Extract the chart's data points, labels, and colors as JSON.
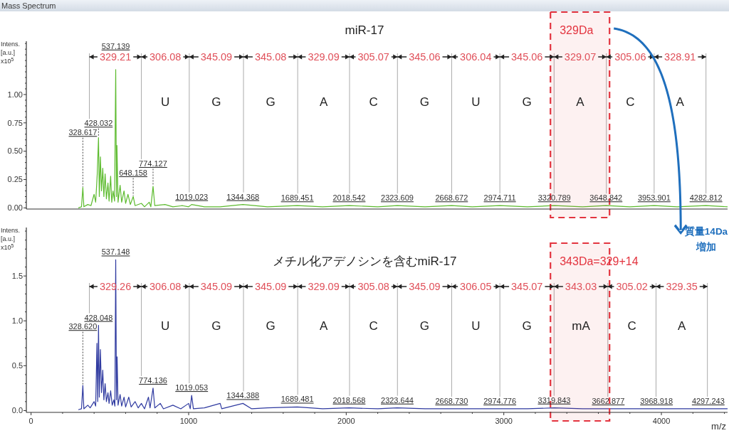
{
  "chart_data": [
    {
      "type": "line",
      "title": "miR-17",
      "ylabel": "Intens. [a.u.] x10$^{5}$",
      "color": "#5dbb2f",
      "annotations": [
        "Mass Spectrum",
        "329.21",
        "306.08",
        "345.09",
        "345.08",
        "329.09",
        "305.07",
        "345.06",
        "306.04",
        "345.06",
        "329.07",
        "305.06",
        "328.91",
        "U",
        "G",
        "G",
        "A",
        "C",
        "G",
        "U",
        "G",
        "A",
        "C",
        "A",
        {
          "text": "328.617",
          "x": 328.617,
          "y": 0.18
        },
        {
          "text": "428.032",
          "x": 428.032,
          "y": 0.62
        },
        {
          "text": "537.139",
          "x": 537.139,
          "y": 1.22
        },
        {
          "text": "648.158",
          "x": 648.158,
          "y": 0.1
        },
        {
          "text": "774.127",
          "x": 774.127,
          "y": 0.19
        },
        {
          "text": "1019.023",
          "x": 1019.023,
          "y": 0.03
        },
        {
          "text": "1344.368",
          "x": 1344.368,
          "y": 0.03
        },
        {
          "text": "1689.451",
          "x": 1689.451,
          "y": 0.02
        },
        {
          "text": "2018.542",
          "x": 2018.542,
          "y": 0.02
        },
        {
          "text": "2323.609",
          "x": 2323.609,
          "y": 0.02
        },
        {
          "text": "2668.672",
          "x": 2668.672,
          "y": 0.02
        },
        {
          "text": "2974.711",
          "x": 2974.711,
          "y": 0.02
        },
        {
          "text": "3320.789",
          "x": 3320.789,
          "y": 0.02
        },
        {
          "text": "3648.842",
          "x": 3648.842,
          "y": 0.02
        },
        {
          "text": "3953.901",
          "x": 3953.901,
          "y": 0.02
        },
        {
          "text": "4282.812",
          "x": 4282.812,
          "y": 0.02
        }
      ],
      "x": [
        300,
        320,
        328.617,
        335,
        360,
        380,
        400,
        410,
        420,
        428.032,
        433,
        440,
        447,
        455,
        462,
        470,
        478,
        488,
        495,
        505,
        512,
        520,
        530,
        537.139,
        542,
        545,
        552,
        565,
        575,
        590,
        600,
        615,
        630,
        648.158,
        660,
        700,
        720,
        750,
        760,
        774.127,
        785,
        850,
        900,
        960,
        1000,
        1019.023,
        1100,
        1200,
        1344.368,
        1500,
        1689.451,
        1850,
        2018.542,
        2200,
        2323.609,
        2500,
        2668.672,
        2800,
        2974.711,
        3150,
        3320.789,
        3500,
        3648.842,
        3800,
        3953.901,
        4100,
        4282.812,
        4420
      ],
      "values": [
        0,
        0.01,
        0.18,
        0.01,
        0.03,
        0.02,
        0.12,
        0.05,
        0.3,
        0.62,
        0.1,
        0.45,
        0.15,
        0.35,
        0.1,
        0.3,
        0.08,
        0.22,
        0.06,
        0.28,
        0.05,
        0.15,
        0.06,
        1.22,
        0.1,
        0.55,
        0.05,
        0.2,
        0.05,
        0.15,
        0.04,
        0.12,
        0.03,
        0.1,
        0.02,
        0.04,
        0.01,
        0.05,
        0.01,
        0.19,
        0.02,
        0.03,
        0.01,
        0.02,
        0.01,
        0.03,
        0.01,
        0.01,
        0.03,
        0.01,
        0.02,
        0.01,
        0.02,
        0.01,
        0.02,
        0.01,
        0.02,
        0.01,
        0.02,
        0.01,
        0.02,
        0.01,
        0.02,
        0.01,
        0.02,
        0.01,
        0.02,
        0.01
      ],
      "xlim": [
        -30,
        4420
      ],
      "ylim": [
        -0.01,
        1.47
      ],
      "yticks": [
        {
          "value": 0,
          "label": "0.00"
        },
        {
          "value": 0.05,
          "label": null
        },
        {
          "value": 0.1,
          "label": null
        },
        {
          "value": 0.15,
          "label": null
        },
        {
          "value": 0.2,
          "label": null
        },
        0.25,
        {
          "value": 0.3,
          "label": null
        },
        {
          "value": 0.35,
          "label": null
        },
        {
          "value": 0.4,
          "label": null
        },
        {
          "value": 0.45,
          "label": null
        },
        {
          "value": 0.5,
          "label": "0.50"
        },
        {
          "value": 0.55,
          "label": null
        },
        {
          "value": 0.6,
          "label": null
        },
        {
          "value": 0.65,
          "label": null
        },
        {
          "value": 0.7,
          "label": null
        },
        0.75,
        {
          "value": 0.8,
          "label": null
        },
        {
          "value": 0.85,
          "label": null
        },
        {
          "value": 0.9,
          "label": null
        },
        {
          "value": 0.95,
          "label": null
        },
        {
          "value": 1,
          "label": "1.00"
        },
        {
          "value": 1.05,
          "label": null
        },
        {
          "value": 1.1,
          "label": null
        },
        {
          "value": 1.15,
          "label": null
        },
        {
          "value": 1.2,
          "label": null
        },
        {
          "value": 1.25,
          "label": null
        },
        {
          "value": 1.3,
          "label": null
        },
        {
          "value": 1.35,
          "label": null
        },
        {
          "value": 1.4,
          "label": null
        },
        {
          "value": 1.45,
          "label": null
        }
      ],
      "ref_lines": [
        {
          "axis": "x",
          "value": 370,
          "color": "#aaaaaa"
        },
        {
          "axis": "x",
          "value": 700,
          "color": "#aaaaaa"
        },
        {
          "axis": "x",
          "value": 1004,
          "color": "#aaaaaa"
        },
        {
          "axis": "x",
          "value": 1348,
          "color": "#aaaaaa"
        },
        {
          "axis": "x",
          "value": 1692,
          "color": "#aaaaaa"
        },
        {
          "axis": "x",
          "value": 2021,
          "color": "#aaaaaa"
        },
        {
          "axis": "x",
          "value": 2325,
          "color": "#aaaaaa"
        },
        {
          "axis": "x",
          "value": 2669,
          "color": "#aaaaaa"
        },
        {
          "axis": "x",
          "value": 2975,
          "color": "#aaaaaa"
        },
        {
          "axis": "x",
          "value": 3319,
          "color": "#aaaaaa"
        },
        {
          "axis": "x",
          "value": 3651,
          "color": "#aaaaaa"
        },
        {
          "axis": "x",
          "value": 3954,
          "color": "#aaaaaa"
        },
        {
          "axis": "x",
          "value": 4283,
          "color": "#aaaaaa"
        }
      ],
      "bands": [
        {
          "axis": "x",
          "from": 3296,
          "to": 3671,
          "label": "329Da",
          "color": "#e3343f"
        }
      ],
      "tick_labels": "y"
    },
    {
      "type": "line",
      "title": "メチル化アデノシンを含むmiR-17",
      "xlabel": "m/z",
      "ylabel": "Intens. [a.u.] x10$^{5}$",
      "color": "#2f3aa0",
      "annotations": [
        "質量14Da増加",
        "329.26",
        "306.08",
        "345.09",
        "345.09",
        "329.09",
        "305.08",
        "345.09",
        "306.05",
        "345.07",
        "343.03",
        "305.02",
        "329.35",
        "U",
        "G",
        "G",
        "A",
        "C",
        "G",
        "U",
        "G",
        "mA",
        "C",
        "A",
        {
          "text": "328.620",
          "x": 328.62,
          "y": 0.28
        },
        {
          "text": "428.048",
          "x": 428.048,
          "y": 0.95
        },
        {
          "text": "537.148",
          "x": 537.148,
          "y": 1.68
        },
        {
          "text": "774.136",
          "x": 774.136,
          "y": 0.25
        },
        {
          "text": "1019.053",
          "x": 1019.053,
          "y": 0.17
        },
        {
          "text": "1344.388",
          "x": 1344.388,
          "y": 0.08
        },
        {
          "text": "1689.481",
          "x": 1689.481,
          "y": 0.04
        },
        {
          "text": "2018.568",
          "x": 2018.568,
          "y": 0.03
        },
        {
          "text": "2323.644",
          "x": 2323.644,
          "y": 0.03
        },
        {
          "text": "2668.730",
          "x": 2668.73,
          "y": 0.02
        },
        {
          "text": "2974.776",
          "x": 2974.776,
          "y": 0.02
        },
        {
          "text": "3319.843",
          "x": 3319.843,
          "y": 0.03
        },
        {
          "text": "3662.877",
          "x": 3662.877,
          "y": 0.02
        },
        {
          "text": "3968.918",
          "x": 3968.918,
          "y": 0.02
        },
        {
          "text": "4297.243",
          "x": 4297.243,
          "y": 0.02
        }
      ],
      "x": [
        300,
        320,
        328.62,
        335,
        360,
        375,
        400,
        410,
        418,
        423,
        428.048,
        433,
        440,
        447,
        455,
        462,
        470,
        478,
        488,
        495,
        505,
        515,
        525,
        532,
        537.148,
        542,
        546,
        552,
        565,
        575,
        590,
        600,
        620,
        635,
        660,
        680,
        700,
        720,
        745,
        755,
        774.136,
        785,
        820,
        840,
        900,
        950,
        1000,
        1010,
        1019.053,
        1030,
        1100,
        1200,
        1210,
        1344.388,
        1400,
        1500,
        1689.481,
        1850,
        2018.568,
        2200,
        2323.644,
        2500,
        2668.73,
        2800,
        2974.776,
        3150,
        3319.843,
        3500,
        3662.877,
        3800,
        3968.918,
        4100,
        4297.243,
        4420
      ],
      "values": [
        0.01,
        0.02,
        0.28,
        0.02,
        0.06,
        0.03,
        0.1,
        0.05,
        0.75,
        0.1,
        0.95,
        0.15,
        0.68,
        0.2,
        0.45,
        0.12,
        0.3,
        0.1,
        0.2,
        0.08,
        0.22,
        0.06,
        0.12,
        0.05,
        1.68,
        0.12,
        0.6,
        0.06,
        0.18,
        0.05,
        0.15,
        0.04,
        0.15,
        0.04,
        0.1,
        0.03,
        0.08,
        0.02,
        0.15,
        0.03,
        0.25,
        0.03,
        0.08,
        0.02,
        0.06,
        0.02,
        0.08,
        0.02,
        0.17,
        0.02,
        0.03,
        0.08,
        0.02,
        0.08,
        0.02,
        0.03,
        0.04,
        0.02,
        0.03,
        0.02,
        0.03,
        0.02,
        0.02,
        0.02,
        0.02,
        0.02,
        0.03,
        0.02,
        0.02,
        0.02,
        0.02,
        0.02,
        0.02,
        0.02
      ],
      "xlim": [
        -30,
        4420
      ],
      "ylim": [
        -0.02,
        2.04
      ],
      "xticks": [
        0,
        {
          "value": 200,
          "label": null
        },
        {
          "value": 400,
          "label": null
        },
        {
          "value": 600,
          "label": null
        },
        {
          "value": 800,
          "label": null
        },
        1000,
        {
          "value": 1200,
          "label": null
        },
        {
          "value": 1400,
          "label": null
        },
        {
          "value": 1600,
          "label": null
        },
        {
          "value": 1800,
          "label": null
        },
        2000,
        {
          "value": 2200,
          "label": null
        },
        {
          "value": 2400,
          "label": null
        },
        {
          "value": 2600,
          "label": null
        },
        {
          "value": 2800,
          "label": null
        },
        3000,
        {
          "value": 3200,
          "label": null
        },
        {
          "value": 3400,
          "label": null
        },
        {
          "value": 3600,
          "label": null
        },
        {
          "value": 3800,
          "label": null
        },
        4000,
        {
          "value": 4200,
          "label": null
        },
        {
          "value": 4400,
          "label": null
        }
      ],
      "yticks": [
        {
          "value": 0,
          "label": "0.0"
        },
        {
          "value": 0.1,
          "label": null
        },
        {
          "value": 0.2,
          "label": null
        },
        {
          "value": 0.3,
          "label": null
        },
        {
          "value": 0.4,
          "label": null
        },
        0.5,
        {
          "value": 0.6,
          "label": null
        },
        {
          "value": 0.7,
          "label": null
        },
        {
          "value": 0.8,
          "label": null
        },
        {
          "value": 0.9,
          "label": null
        },
        {
          "value": 1,
          "label": "1.0"
        },
        {
          "value": 1.1,
          "label": null
        },
        {
          "value": 1.2,
          "label": null
        },
        {
          "value": 1.3,
          "label": null
        },
        {
          "value": 1.4,
          "label": null
        },
        1.5,
        {
          "value": 1.6,
          "label": null
        },
        {
          "value": 1.7,
          "label": null
        },
        {
          "value": 1.8,
          "label": null
        },
        {
          "value": 1.9,
          "label": null
        },
        {
          "value": 2,
          "label": null
        }
      ],
      "ref_lines": [
        {
          "axis": "x",
          "value": 370,
          "color": "#aaaaaa"
        },
        {
          "axis": "x",
          "value": 700,
          "color": "#aaaaaa"
        },
        {
          "axis": "x",
          "value": 1004,
          "color": "#aaaaaa"
        },
        {
          "axis": "x",
          "value": 1348,
          "color": "#aaaaaa"
        },
        {
          "axis": "x",
          "value": 1692,
          "color": "#aaaaaa"
        },
        {
          "axis": "x",
          "value": 2021,
          "color": "#aaaaaa"
        },
        {
          "axis": "x",
          "value": 2325,
          "color": "#aaaaaa"
        },
        {
          "axis": "x",
          "value": 2669,
          "color": "#aaaaaa"
        },
        {
          "axis": "x",
          "value": 2975,
          "color": "#aaaaaa"
        },
        {
          "axis": "x",
          "value": 3319,
          "color": "#aaaaaa"
        },
        {
          "axis": "x",
          "value": 3660,
          "color": "#aaaaaa"
        },
        {
          "axis": "x",
          "value": 3966,
          "color": "#aaaaaa"
        },
        {
          "axis": "x",
          "value": 4292,
          "color": "#aaaaaa"
        }
      ],
      "bands": [
        {
          "axis": "x",
          "from": 3296,
          "to": 3671,
          "label": "343Da=329+14",
          "color": "#e3343f"
        }
      ]
    }
  ]
}
